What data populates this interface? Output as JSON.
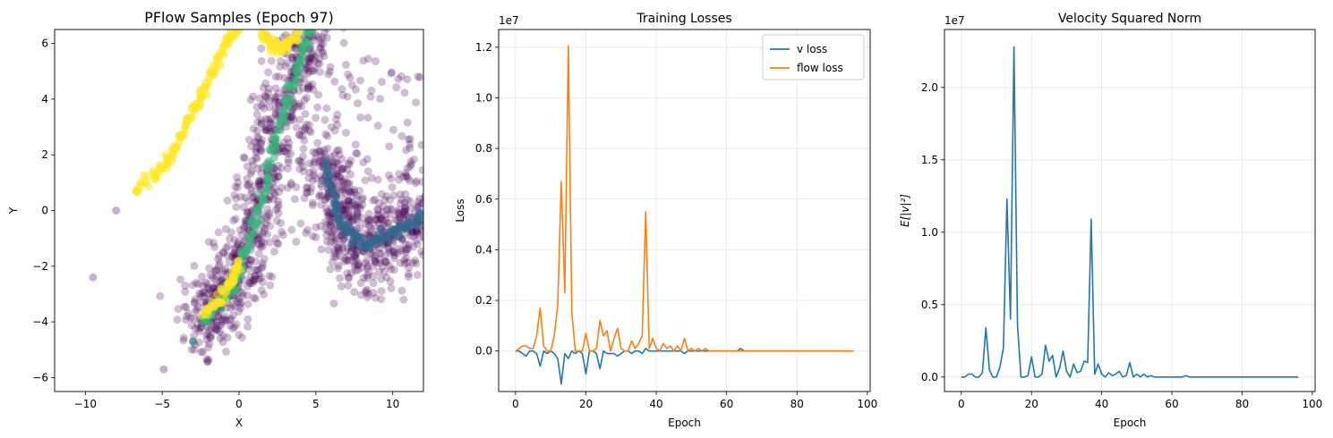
{
  "chart_data": [
    {
      "type": "scatter",
      "title": "PFlow Samples (Epoch 97)",
      "xlabel": "X",
      "ylabel": "Y",
      "xlim": [
        -12,
        12
      ],
      "ylim": [
        -6.5,
        6.5
      ],
      "xticks": [
        -10,
        -5,
        0,
        5,
        10
      ],
      "yticks": [
        -6,
        -4,
        -2,
        0,
        2,
        4,
        6
      ],
      "xtick_labels": [
        "−10",
        "−5",
        "0",
        "5",
        "10"
      ],
      "ytick_labels": [
        "−6",
        "−4",
        "−2",
        "0",
        "2",
        "4",
        "6"
      ],
      "grid": false,
      "colormap": "viridis",
      "point_alpha": 0.25,
      "structures": [
        {
          "name": "yellow-arc",
          "color": "#fde725",
          "points": [
            [
              -6.8,
              0.7
            ],
            [
              -5.5,
              1.3
            ],
            [
              -4.8,
              1.7
            ],
            [
              -4.2,
              2.2
            ],
            [
              -3.6,
              2.8
            ],
            [
              -3.0,
              3.5
            ],
            [
              -2.4,
              4.2
            ],
            [
              -1.8,
              4.9
            ],
            [
              -1.2,
              5.6
            ],
            [
              -0.6,
              6.2
            ],
            [
              0.0,
              6.6
            ]
          ]
        },
        {
          "name": "yellow-top",
          "color": "#fde725",
          "points": [
            [
              1.5,
              6.4
            ],
            [
              2.0,
              6.0
            ],
            [
              2.6,
              5.8
            ],
            [
              3.2,
              6.0
            ],
            [
              3.8,
              6.4
            ]
          ]
        },
        {
          "name": "dense-band-left",
          "color": "#35b779",
          "points": [
            [
              -2.3,
              -3.9
            ],
            [
              -1.5,
              -3.5
            ],
            [
              -0.7,
              -2.9
            ],
            [
              0.0,
              -2.2
            ],
            [
              0.6,
              -1.2
            ],
            [
              1.2,
              -0.1
            ],
            [
              1.8,
              1.2
            ],
            [
              2.4,
              2.5
            ],
            [
              3.0,
              3.8
            ],
            [
              3.6,
              4.8
            ],
            [
              4.2,
              5.8
            ],
            [
              4.8,
              6.6
            ]
          ]
        },
        {
          "name": "dense-band-right",
          "color": "#31688e",
          "points": [
            [
              5.6,
              1.8
            ],
            [
              6.0,
              0.6
            ],
            [
              6.5,
              -0.2
            ],
            [
              7.2,
              -0.8
            ],
            [
              8.0,
              -1.2
            ],
            [
              9.0,
              -1.1
            ],
            [
              10.0,
              -0.8
            ],
            [
              11.0,
              -0.5
            ],
            [
              12.0,
              -0.2
            ]
          ]
        },
        {
          "name": "yellow-bottom",
          "color": "#fde725",
          "points": [
            [
              -2.2,
              -3.7
            ],
            [
              -1.5,
              -3.3
            ],
            [
              -0.8,
              -2.8
            ],
            [
              -0.2,
              -2.2
            ],
            [
              0.0,
              -1.9
            ]
          ]
        }
      ],
      "outliers": [
        [
          -9.5,
          -2.4
        ],
        [
          -8.0,
          0.0
        ],
        [
          -4.9,
          -5.7
        ],
        [
          -3.0,
          -4.7
        ],
        [
          -6.7,
          0.7
        ]
      ]
    },
    {
      "type": "line",
      "title": "Training Losses",
      "xlabel": "Epoch",
      "ylabel": "Loss",
      "scale_label": "1e7",
      "xlim": [
        -4.8,
        100.8
      ],
      "ylim": [
        -0.16,
        1.27
      ],
      "xticks": [
        0,
        20,
        40,
        60,
        80,
        100
      ],
      "yticks": [
        0.0,
        0.2,
        0.4,
        0.6,
        0.8,
        1.0,
        1.2
      ],
      "xtick_labels": [
        "0",
        "20",
        "40",
        "60",
        "80",
        "100"
      ],
      "ytick_labels": [
        "0.0",
        "0.2",
        "0.4",
        "0.6",
        "0.8",
        "1.0",
        "1.2"
      ],
      "grid": true,
      "legend": "top-right",
      "series": [
        {
          "name": "v loss",
          "color": "#1f77b4",
          "x": [
            0,
            1,
            2,
            3,
            4,
            5,
            6,
            7,
            8,
            9,
            10,
            11,
            12,
            13,
            14,
            15,
            16,
            17,
            18,
            19,
            20,
            21,
            22,
            23,
            24,
            25,
            26,
            27,
            28,
            29,
            30,
            31,
            32,
            33,
            34,
            35,
            36,
            37,
            38,
            39,
            40,
            41,
            42,
            43,
            44,
            45,
            46,
            47,
            48,
            49,
            50,
            51,
            52,
            53,
            54,
            55,
            56,
            57,
            58,
            59,
            60,
            61,
            62,
            63,
            64,
            65,
            66,
            67,
            68,
            69,
            70,
            71,
            72,
            73,
            74,
            75,
            76,
            77,
            78,
            79,
            80,
            81,
            82,
            83,
            84,
            85,
            86,
            87,
            88,
            89,
            90,
            91,
            92,
            93,
            94,
            95,
            96
          ],
          "values": [
            0,
            0,
            -0.01,
            -0.02,
            0,
            0,
            -0.01,
            -0.06,
            0,
            -0.01,
            0,
            -0.01,
            -0.03,
            -0.13,
            -0.01,
            -0.03,
            0,
            -0.01,
            0,
            -0.01,
            -0.09,
            0,
            0,
            -0.01,
            -0.07,
            0,
            -0.01,
            -0.01,
            -0.01,
            -0.02,
            -0.01,
            0,
            0,
            -0.01,
            0,
            0,
            -0.01,
            0.01,
            0,
            0,
            0,
            0,
            0,
            0,
            0,
            0,
            0,
            0,
            -0.01,
            0,
            0,
            0,
            0,
            0,
            0,
            0,
            0,
            0,
            0,
            0,
            0,
            0,
            0,
            0,
            0.01,
            0,
            0,
            0,
            0,
            0,
            0,
            0,
            0,
            0,
            0,
            0,
            0,
            0,
            0,
            0,
            0,
            0,
            0,
            0,
            0,
            0,
            0,
            0,
            0,
            0,
            0,
            0,
            0,
            0,
            0,
            0,
            0
          ]
        },
        {
          "name": "flow loss",
          "color": "#ff7f0e",
          "x": [
            0,
            1,
            2,
            3,
            4,
            5,
            6,
            7,
            8,
            9,
            10,
            11,
            12,
            13,
            14,
            15,
            16,
            17,
            18,
            19,
            20,
            21,
            22,
            23,
            24,
            25,
            26,
            27,
            28,
            29,
            30,
            31,
            32,
            33,
            34,
            35,
            36,
            37,
            38,
            39,
            40,
            41,
            42,
            43,
            44,
            45,
            46,
            47,
            48,
            49,
            50,
            51,
            52,
            53,
            54,
            55,
            56,
            57,
            58,
            59,
            60,
            61,
            62,
            63,
            64,
            65,
            66,
            67,
            68,
            69,
            70,
            71,
            72,
            73,
            74,
            75,
            76,
            77,
            78,
            79,
            80,
            81,
            82,
            83,
            84,
            85,
            86,
            87,
            88,
            89,
            90,
            91,
            92,
            93,
            94,
            95,
            96
          ],
          "values": [
            0,
            0.01,
            0.02,
            0.02,
            0.01,
            0.01,
            0.06,
            0.17,
            0.02,
            0,
            0,
            0.06,
            0.18,
            0.67,
            0.23,
            1.205,
            0.15,
            0,
            0,
            0,
            0.07,
            0,
            0,
            0.01,
            0.12,
            0.06,
            0.08,
            0,
            0.05,
            0.09,
            0.01,
            0,
            0,
            0.04,
            0.01,
            0.03,
            0.06,
            0.55,
            0.01,
            0.05,
            0.01,
            0,
            0.03,
            0.01,
            0.02,
            0,
            0.02,
            0,
            0.05,
            0,
            0.01,
            0,
            0.01,
            0,
            0.01,
            0,
            0,
            0,
            0,
            0,
            0,
            0,
            0,
            0,
            0,
            0,
            0,
            0,
            0,
            0,
            0,
            0,
            0,
            0,
            0,
            0,
            0,
            0,
            0,
            0,
            0,
            0,
            0,
            0,
            0,
            0,
            0,
            0,
            0,
            0,
            0,
            0,
            0,
            0,
            0,
            0,
            0
          ]
        }
      ]
    },
    {
      "type": "line",
      "title": "Velocity Squared Norm",
      "xlabel": "Epoch",
      "ylabel": "E[|v|²]",
      "scale_label": "1e7",
      "xlim": [
        -4.8,
        100.8
      ],
      "ylim": [
        -0.1,
        2.4
      ],
      "xticks": [
        0,
        20,
        40,
        60,
        80,
        100
      ],
      "yticks": [
        0.0,
        0.5,
        1.0,
        1.5,
        2.0
      ],
      "xtick_labels": [
        "0",
        "20",
        "40",
        "60",
        "80",
        "100"
      ],
      "ytick_labels": [
        "0.0",
        "0.5",
        "1.0",
        "1.5",
        "2.0"
      ],
      "grid": true,
      "series": [
        {
          "name": "",
          "color": "#1f77b4",
          "x": [
            0,
            1,
            2,
            3,
            4,
            5,
            6,
            7,
            8,
            9,
            10,
            11,
            12,
            13,
            14,
            15,
            16,
            17,
            18,
            19,
            20,
            21,
            22,
            23,
            24,
            25,
            26,
            27,
            28,
            29,
            30,
            31,
            32,
            33,
            34,
            35,
            36,
            37,
            38,
            39,
            40,
            41,
            42,
            43,
            44,
            45,
            46,
            47,
            48,
            49,
            50,
            51,
            52,
            53,
            54,
            55,
            56,
            57,
            58,
            59,
            60,
            61,
            62,
            63,
            64,
            65,
            66,
            67,
            68,
            69,
            70,
            71,
            72,
            73,
            74,
            75,
            76,
            77,
            78,
            79,
            80,
            81,
            82,
            83,
            84,
            85,
            86,
            87,
            88,
            89,
            90,
            91,
            92,
            93,
            94,
            95,
            96
          ],
          "values": [
            0,
            0,
            0.02,
            0.02,
            0,
            0,
            0.03,
            0.34,
            0.05,
            0,
            0,
            0.07,
            0.2,
            1.23,
            0.4,
            2.28,
            0.36,
            0,
            0,
            0.01,
            0.14,
            0,
            0,
            0.02,
            0.22,
            0.11,
            0.15,
            0,
            0.06,
            0.18,
            0.04,
            0,
            0.09,
            0.03,
            0.04,
            0.11,
            0.1,
            1.09,
            0.02,
            0.09,
            0.02,
            0,
            0.03,
            0.01,
            0.02,
            0.04,
            0,
            0.01,
            0.1,
            0,
            0.02,
            0,
            0.02,
            0,
            0.01,
            0,
            0,
            0,
            0,
            0,
            0,
            0,
            0,
            0,
            0.01,
            0,
            0,
            0,
            0,
            0,
            0,
            0,
            0,
            0,
            0,
            0,
            0,
            0,
            0,
            0,
            0,
            0,
            0,
            0,
            0,
            0,
            0,
            0,
            0,
            0,
            0,
            0,
            0,
            0,
            0,
            0,
            0
          ]
        }
      ]
    }
  ]
}
